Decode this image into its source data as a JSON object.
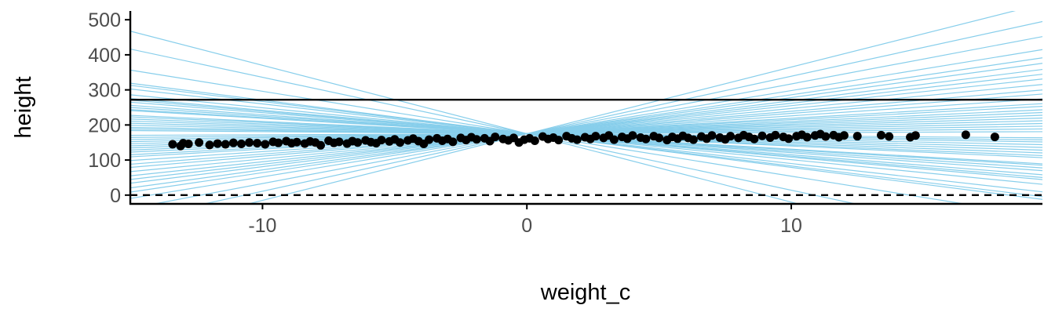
{
  "chart_data": {
    "type": "scatter",
    "title": "",
    "xlabel": "weight_c",
    "ylabel": "height",
    "xlim": [
      -15,
      19.5
    ],
    "ylim": [
      -25,
      525
    ],
    "x_ticks": [
      -10,
      0,
      10
    ],
    "x_tick_labels": [
      "-10",
      "0",
      "10"
    ],
    "y_ticks": [
      0,
      100,
      200,
      300,
      400,
      500
    ],
    "y_tick_labels": [
      "0",
      "100",
      "200",
      "300",
      "400",
      "500"
    ],
    "grid": false,
    "colors": {
      "points": "#000000",
      "prior_lines": "#87ceeb",
      "reference_lines": "#000000"
    },
    "reference_lines": [
      {
        "name": "",
        "y": 272,
        "style": "solid"
      },
      {
        "name": "",
        "y": 0,
        "style": "dashed"
      }
    ],
    "prior_lines_intercept_x0": 175,
    "prior_lines_slopes": [
      -19.5,
      -16.1,
      -12.1,
      -9.6,
      -9.2,
      -8.5,
      -7.4,
      -6.7,
      -6.4,
      -6.0,
      -5.4,
      -5.0,
      -4.6,
      -4.4,
      -3.5,
      -3.2,
      -2.8,
      -2.4,
      -2.0,
      -1.6,
      -1.2,
      -0.9,
      -0.6,
      0.3,
      0.7,
      1.1,
      1.5,
      1.9,
      2.3,
      2.7,
      3.1,
      3.5,
      4.0,
      4.4,
      5.1,
      5.8,
      6.4,
      7.2,
      8.0,
      8.7,
      9.4,
      10.3,
      11.1,
      12.3,
      14.2,
      16.4,
      19.0
    ],
    "points": [
      [
        -13.4,
        145
      ],
      [
        -13.1,
        140
      ],
      [
        -13.0,
        148
      ],
      [
        -12.8,
        146
      ],
      [
        -12.4,
        150
      ],
      [
        -12.0,
        143
      ],
      [
        -11.7,
        147
      ],
      [
        -11.4,
        145
      ],
      [
        -11.1,
        149
      ],
      [
        -10.8,
        146
      ],
      [
        -10.5,
        150
      ],
      [
        -10.2,
        148
      ],
      [
        -9.9,
        145
      ],
      [
        -9.6,
        152
      ],
      [
        -9.4,
        149
      ],
      [
        -9.1,
        154
      ],
      [
        -8.9,
        148
      ],
      [
        -8.7,
        151
      ],
      [
        -8.4,
        147
      ],
      [
        -8.2,
        153
      ],
      [
        -8.0,
        150
      ],
      [
        -7.8,
        142
      ],
      [
        -7.5,
        155
      ],
      [
        -7.3,
        149
      ],
      [
        -7.1,
        152
      ],
      [
        -6.8,
        147
      ],
      [
        -6.6,
        154
      ],
      [
        -6.4,
        150
      ],
      [
        -6.1,
        156
      ],
      [
        -5.9,
        151
      ],
      [
        -5.7,
        148
      ],
      [
        -5.5,
        157
      ],
      [
        -5.2,
        153
      ],
      [
        -5.0,
        159
      ],
      [
        -4.8,
        150
      ],
      [
        -4.5,
        156
      ],
      [
        -4.3,
        161
      ],
      [
        -4.1,
        154
      ],
      [
        -3.9,
        146
      ],
      [
        -3.7,
        158
      ],
      [
        -3.4,
        162
      ],
      [
        -3.2,
        155
      ],
      [
        -3.0,
        160
      ],
      [
        -2.8,
        152
      ],
      [
        -2.5,
        163
      ],
      [
        -2.3,
        157
      ],
      [
        -2.1,
        165
      ],
      [
        -1.9,
        159
      ],
      [
        -1.6,
        162
      ],
      [
        -1.4,
        154
      ],
      [
        -1.2,
        166
      ],
      [
        -0.9,
        160
      ],
      [
        -0.7,
        156
      ],
      [
        -0.5,
        163
      ],
      [
        -0.3,
        150
      ],
      [
        -0.1,
        158
      ],
      [
        0.1,
        162
      ],
      [
        0.3,
        155
      ],
      [
        0.6,
        167
      ],
      [
        0.8,
        160
      ],
      [
        1.0,
        164
      ],
      [
        1.2,
        157
      ],
      [
        1.5,
        168
      ],
      [
        1.7,
        162
      ],
      [
        1.9,
        158
      ],
      [
        2.2,
        165
      ],
      [
        2.4,
        160
      ],
      [
        2.6,
        168
      ],
      [
        2.9,
        163
      ],
      [
        3.1,
        170
      ],
      [
        3.3,
        158
      ],
      [
        3.6,
        166
      ],
      [
        3.8,
        161
      ],
      [
        4.0,
        170
      ],
      [
        4.3,
        164
      ],
      [
        4.5,
        160
      ],
      [
        4.8,
        168
      ],
      [
        5.0,
        163
      ],
      [
        5.3,
        157
      ],
      [
        5.5,
        166
      ],
      [
        5.7,
        161
      ],
      [
        5.9,
        169
      ],
      [
        6.1,
        163
      ],
      [
        6.3,
        158
      ],
      [
        6.6,
        167
      ],
      [
        6.8,
        161
      ],
      [
        7.0,
        170
      ],
      [
        7.3,
        164
      ],
      [
        7.5,
        159
      ],
      [
        7.7,
        168
      ],
      [
        8.0,
        163
      ],
      [
        8.2,
        171
      ],
      [
        8.4,
        166
      ],
      [
        8.6,
        160
      ],
      [
        8.9,
        169
      ],
      [
        9.2,
        164
      ],
      [
        9.4,
        171
      ],
      [
        9.7,
        166
      ],
      [
        9.9,
        161
      ],
      [
        10.2,
        168
      ],
      [
        10.4,
        172
      ],
      [
        10.6,
        165
      ],
      [
        10.9,
        170
      ],
      [
        11.1,
        174
      ],
      [
        11.3,
        167
      ],
      [
        11.6,
        171
      ],
      [
        11.8,
        165
      ],
      [
        12.0,
        170
      ],
      [
        12.5,
        168
      ],
      [
        13.4,
        171
      ],
      [
        13.7,
        167
      ],
      [
        14.5,
        165
      ],
      [
        14.7,
        170
      ],
      [
        16.6,
        172
      ],
      [
        17.7,
        166
      ]
    ]
  }
}
